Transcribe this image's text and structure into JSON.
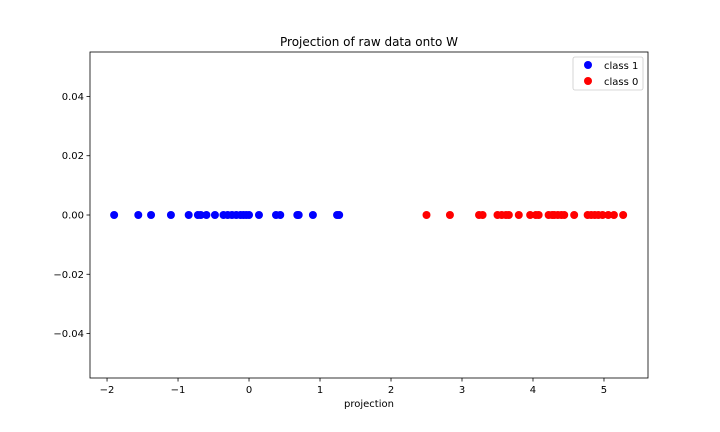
{
  "chart_data": {
    "type": "scatter",
    "title": "Projection of raw data onto W",
    "xlabel": "projection",
    "ylabel": "",
    "xlim": [
      -2.24,
      5.62
    ],
    "ylim": [
      -0.055,
      0.055
    ],
    "x_ticks": [
      -2,
      -1,
      0,
      1,
      2,
      3,
      4,
      5
    ],
    "x_tick_labels": [
      "−2",
      "−1",
      "0",
      "1",
      "2",
      "3",
      "4",
      "5"
    ],
    "y_ticks": [
      -0.04,
      -0.02,
      0.0,
      0.02,
      0.04
    ],
    "y_tick_labels": [
      "−0.04",
      "−0.02",
      "0.00",
      "0.02",
      "0.04"
    ],
    "legend": {
      "placement": "top-right",
      "entries": [
        "class 1",
        "class 0"
      ]
    },
    "grid": false,
    "series": [
      {
        "name": "class 1",
        "color": "#0000ff",
        "x": [
          -1.9,
          -1.56,
          -1.38,
          -1.1,
          -0.85,
          -0.72,
          -0.68,
          -0.6,
          -0.48,
          -0.36,
          -0.3,
          -0.24,
          -0.18,
          -0.12,
          -0.08,
          -0.04,
          0.0,
          0.14,
          0.38,
          0.44,
          0.68,
          0.7,
          0.9,
          1.24,
          1.27
        ],
        "y": [
          0,
          0,
          0,
          0,
          0,
          0,
          0,
          0,
          0,
          0,
          0,
          0,
          0,
          0,
          0,
          0,
          0,
          0,
          0,
          0,
          0,
          0,
          0,
          0,
          0
        ]
      },
      {
        "name": "class 0",
        "color": "#ff0000",
        "x": [
          2.5,
          2.83,
          3.24,
          3.29,
          3.5,
          3.56,
          3.62,
          3.66,
          3.8,
          3.96,
          4.04,
          4.08,
          4.22,
          4.27,
          4.3,
          4.35,
          4.4,
          4.44,
          4.58,
          4.77,
          4.82,
          4.87,
          4.92,
          4.98,
          5.06,
          5.14,
          5.27
        ],
        "y": [
          0,
          0,
          0,
          0,
          0,
          0,
          0,
          0,
          0,
          0,
          0,
          0,
          0,
          0,
          0,
          0,
          0,
          0,
          0,
          0,
          0,
          0,
          0,
          0,
          0,
          0,
          0
        ]
      }
    ]
  }
}
